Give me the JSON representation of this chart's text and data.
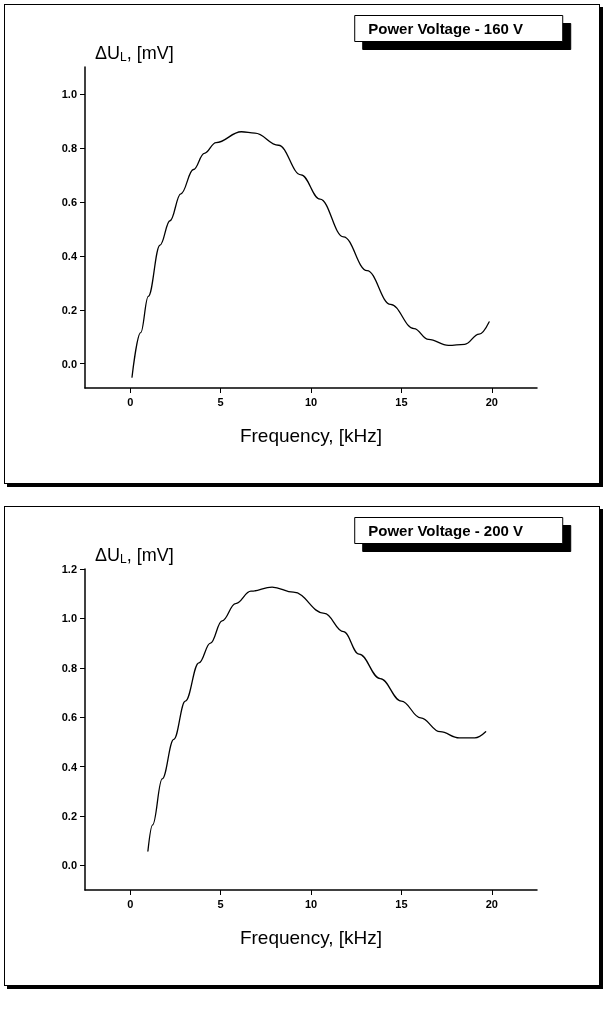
{
  "chart_data": [
    {
      "type": "line",
      "title": "Power Voltage - 160 V",
      "xlabel": "Frequency, [kHz]",
      "ylabel": "ΔU$_{L}$, [mV]",
      "color": "#000000",
      "grid": false,
      "marker": "none",
      "line_style": "solid",
      "xlim": [
        -2.5,
        22.5
      ],
      "xticks": [
        0,
        5,
        10,
        15,
        20
      ],
      "ylim": [
        -0.09,
        1.1
      ],
      "yticks": [
        {
          "value": 0,
          "label": "0.0"
        },
        {
          "value": 0.2,
          "label": "0.2"
        },
        {
          "value": 0.4,
          "label": "0.4"
        },
        {
          "value": 0.6,
          "label": "0.6"
        },
        {
          "value": 0.8,
          "label": "0.8"
        },
        {
          "value": 1,
          "label": "1.0"
        }
      ],
      "x": [
        0.1,
        0.58,
        1.0,
        1.65,
        2.2,
        2.8,
        3.5,
        4.1,
        4.75,
        6.15,
        6.9,
        8.2,
        9.45,
        10.5,
        11.8,
        13.1,
        14.4,
        15.7,
        16.5,
        17.6,
        18.5,
        19.3,
        19.85
      ],
      "values": [
        -0.05,
        0.115,
        0.25,
        0.44,
        0.53,
        0.63,
        0.72,
        0.78,
        0.82,
        0.86,
        0.855,
        0.81,
        0.7,
        0.61,
        0.47,
        0.345,
        0.22,
        0.13,
        0.09,
        0.068,
        0.072,
        0.11,
        0.155
      ]
    },
    {
      "type": "line",
      "title": "Power Voltage - 200 V",
      "xlabel": "Frequency, [kHz]",
      "ylabel": "ΔU$_{L}$, [mV]",
      "color": "#000000",
      "grid": false,
      "marker": "none",
      "line_style": "solid",
      "xlim": [
        -2.5,
        22.5
      ],
      "xticks": [
        0,
        5,
        10,
        15,
        20
      ],
      "ylim": [
        -0.1,
        1.2
      ],
      "yticks": [
        {
          "value": 0,
          "label": "0.0"
        },
        {
          "value": 0.2,
          "label": "0.2"
        },
        {
          "value": 0.4,
          "label": "0.4"
        },
        {
          "value": 0.6,
          "label": "0.6"
        },
        {
          "value": 0.8,
          "label": "0.8"
        },
        {
          "value": 1,
          "label": "1.0"
        },
        {
          "value": 1.2,
          "label": "1.2"
        }
      ],
      "x": [
        0.98,
        1.24,
        1.77,
        2.41,
        3.05,
        3.8,
        4.44,
        5.08,
        5.83,
        6.68,
        7.85,
        9.03,
        10.74,
        11.8,
        12.66,
        13.83,
        15.0,
        16.07,
        17.14,
        18.2,
        19.06,
        19.66
      ],
      "values": [
        0.058,
        0.164,
        0.35,
        0.51,
        0.665,
        0.82,
        0.9,
        0.99,
        1.06,
        1.11,
        1.127,
        1.106,
        1.02,
        0.946,
        0.855,
        0.756,
        0.665,
        0.597,
        0.541,
        0.516,
        0.516,
        0.541
      ]
    }
  ]
}
